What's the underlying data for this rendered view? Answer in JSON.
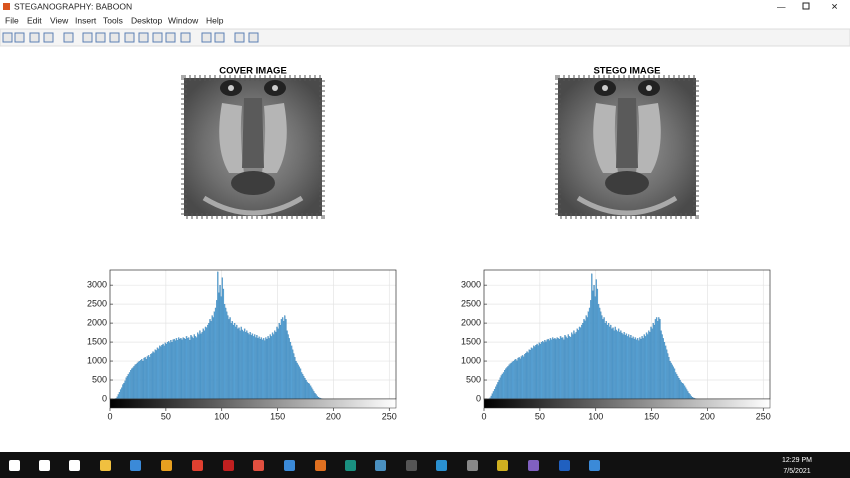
{
  "window": {
    "title": "STEGANOGRAPHY: BABOON",
    "menu": [
      "File",
      "Edit",
      "View",
      "Insert",
      "Tools",
      "Desktop",
      "Window",
      "Help"
    ]
  },
  "images": [
    {
      "title": "COVER IMAGE"
    },
    {
      "title": "STEGO IMAGE"
    }
  ],
  "chart_data": [
    {
      "type": "histogram",
      "color": "#5aa5d8",
      "grid": true,
      "xlim": [
        0,
        256
      ],
      "ylim": [
        0,
        3400
      ],
      "xticks": [
        0,
        50,
        100,
        150,
        200,
        250
      ],
      "yticks": [
        0,
        500,
        1000,
        1500,
        2000,
        2500,
        3000
      ],
      "bins": [
        0,
        1,
        2,
        3,
        4,
        5,
        6,
        7,
        8,
        9,
        10,
        11,
        12,
        13,
        14,
        15,
        16,
        17,
        18,
        19,
        20,
        21,
        22,
        23,
        24,
        25,
        26,
        27,
        28,
        29,
        30,
        31,
        32,
        33,
        34,
        35,
        36,
        37,
        38,
        39,
        40,
        41,
        42,
        43,
        44,
        45,
        46,
        47,
        48,
        49,
        50,
        51,
        52,
        53,
        54,
        55,
        56,
        57,
        58,
        59,
        60,
        61,
        62,
        63,
        64,
        65,
        66,
        67,
        68,
        69,
        70,
        71,
        72,
        73,
        74,
        75,
        76,
        77,
        78,
        79,
        80,
        81,
        82,
        83,
        84,
        85,
        86,
        87,
        88,
        89,
        90,
        91,
        92,
        93,
        94,
        95,
        96,
        97,
        98,
        99,
        100,
        101,
        102,
        103,
        104,
        105,
        106,
        107,
        108,
        109,
        110,
        111,
        112,
        113,
        114,
        115,
        116,
        117,
        118,
        119,
        120,
        121,
        122,
        123,
        124,
        125,
        126,
        127,
        128,
        129,
        130,
        131,
        132,
        133,
        134,
        135,
        136,
        137,
        138,
        139,
        140,
        141,
        142,
        143,
        144,
        145,
        146,
        147,
        148,
        149,
        150,
        151,
        152,
        153,
        154,
        155,
        156,
        157,
        158,
        159,
        160,
        161,
        162,
        163,
        164,
        165,
        166,
        167,
        168,
        169,
        170,
        171,
        172,
        173,
        174,
        175,
        176,
        177,
        178,
        179,
        180,
        181,
        182,
        183,
        184,
        185,
        186,
        187,
        188,
        189,
        190,
        191,
        192,
        193,
        194,
        195,
        196,
        197,
        198,
        199,
        200,
        201,
        202,
        203,
        204,
        205,
        206,
        207,
        208,
        209,
        210,
        211,
        212,
        213,
        214,
        215,
        216,
        217,
        218,
        219,
        220,
        221,
        222,
        223,
        224,
        225,
        226,
        227,
        228,
        229,
        230,
        231,
        232,
        233,
        234,
        235,
        236,
        237,
        238,
        239,
        240,
        241,
        242,
        243,
        244,
        245,
        246,
        247,
        248,
        249,
        250,
        251,
        252,
        253,
        254,
        255,
        256
      ],
      "values": [
        0,
        0,
        0,
        0,
        5,
        20,
        60,
        120,
        180,
        250,
        300,
        380,
        420,
        480,
        560,
        600,
        650,
        700,
        760,
        800,
        820,
        860,
        900,
        920,
        950,
        980,
        1000,
        1020,
        1050,
        1000,
        1080,
        1100,
        1050,
        1120,
        1150,
        1100,
        1180,
        1200,
        1250,
        1220,
        1300,
        1280,
        1350,
        1320,
        1400,
        1380,
        1420,
        1450,
        1400,
        1480,
        1450,
        1500,
        1520,
        1480,
        1550,
        1500,
        1560,
        1580,
        1540,
        1600,
        1550,
        1620,
        1580,
        1600,
        1560,
        1620,
        1600,
        1580,
        1650,
        1600,
        1620,
        1550,
        1680,
        1640,
        1600,
        1700,
        1650,
        1620,
        1750,
        1700,
        1800,
        1720,
        1760,
        1850,
        1800,
        1900,
        1880,
        1950,
        2000,
        2100,
        2050,
        2200,
        2150,
        2300,
        2400,
        2600,
        3350,
        2800,
        3000,
        2700,
        3200,
        2900,
        2500,
        2400,
        2300,
        2200,
        2100,
        2150,
        2000,
        2050,
        1950,
        2000,
        1900,
        1950,
        1850,
        1880,
        1800,
        1900,
        1820,
        1780,
        1850,
        1760,
        1800,
        1740,
        1700,
        1760,
        1680,
        1720,
        1650,
        1700,
        1620,
        1680,
        1600,
        1640,
        1580,
        1620,
        1560,
        1600,
        1540,
        1620,
        1580,
        1650,
        1600,
        1700,
        1650,
        1750,
        1700,
        1800,
        1760,
        1900,
        1850,
        2000,
        1950,
        2100,
        2150,
        2050,
        2200,
        2100,
        1800,
        1700,
        1600,
        1500,
        1400,
        1300,
        1200,
        1100,
        1000,
        950,
        900,
        850,
        800,
        700,
        650,
        600,
        550,
        500,
        450,
        420,
        400,
        350,
        300,
        250,
        200,
        150,
        120,
        80,
        50,
        30,
        20,
        10,
        5,
        0,
        0,
        0,
        0,
        0,
        0,
        0,
        0,
        0,
        0,
        0,
        0,
        0,
        0,
        0,
        0,
        0,
        0,
        0,
        0,
        0,
        0,
        0,
        0,
        0,
        0,
        0,
        0,
        0,
        0,
        0,
        0,
        0,
        0,
        0,
        0,
        0,
        0,
        0,
        0,
        0,
        0,
        0,
        0,
        0,
        0,
        0,
        0,
        0,
        0,
        0,
        0,
        0,
        0,
        0,
        0,
        0,
        0,
        0,
        0,
        0,
        0,
        0,
        0,
        0
      ]
    },
    {
      "type": "histogram",
      "color": "#5aa5d8",
      "grid": true,
      "xlim": [
        0,
        256
      ],
      "ylim": [
        0,
        3400
      ],
      "xticks": [
        0,
        50,
        100,
        150,
        200,
        250
      ],
      "yticks": [
        0,
        500,
        1000,
        1500,
        2000,
        2500,
        3000
      ],
      "bins": [
        0,
        1,
        2,
        3,
        4,
        5,
        6,
        7,
        8,
        9,
        10,
        11,
        12,
        13,
        14,
        15,
        16,
        17,
        18,
        19,
        20,
        21,
        22,
        23,
        24,
        25,
        26,
        27,
        28,
        29,
        30,
        31,
        32,
        33,
        34,
        35,
        36,
        37,
        38,
        39,
        40,
        41,
        42,
        43,
        44,
        45,
        46,
        47,
        48,
        49,
        50,
        51,
        52,
        53,
        54,
        55,
        56,
        57,
        58,
        59,
        60,
        61,
        62,
        63,
        64,
        65,
        66,
        67,
        68,
        69,
        70,
        71,
        72,
        73,
        74,
        75,
        76,
        77,
        78,
        79,
        80,
        81,
        82,
        83,
        84,
        85,
        86,
        87,
        88,
        89,
        90,
        91,
        92,
        93,
        94,
        95,
        96,
        97,
        98,
        99,
        100,
        101,
        102,
        103,
        104,
        105,
        106,
        107,
        108,
        109,
        110,
        111,
        112,
        113,
        114,
        115,
        116,
        117,
        118,
        119,
        120,
        121,
        122,
        123,
        124,
        125,
        126,
        127,
        128,
        129,
        130,
        131,
        132,
        133,
        134,
        135,
        136,
        137,
        138,
        139,
        140,
        141,
        142,
        143,
        144,
        145,
        146,
        147,
        148,
        149,
        150,
        151,
        152,
        153,
        154,
        155,
        156,
        157,
        158,
        159,
        160,
        161,
        162,
        163,
        164,
        165,
        166,
        167,
        168,
        169,
        170,
        171,
        172,
        173,
        174,
        175,
        176,
        177,
        178,
        179,
        180,
        181,
        182,
        183,
        184,
        185,
        186,
        187,
        188,
        189,
        190,
        191,
        192,
        193,
        194,
        195,
        196,
        197,
        198,
        199,
        200,
        201,
        202,
        203,
        204,
        205,
        206,
        207,
        208,
        209,
        210,
        211,
        212,
        213,
        214,
        215,
        216,
        217,
        218,
        219,
        220,
        221,
        222,
        223,
        224,
        225,
        226,
        227,
        228,
        229,
        230,
        231,
        232,
        233,
        234,
        235,
        236,
        237,
        238,
        239,
        240,
        241,
        242,
        243,
        244,
        245,
        246,
        247,
        248,
        249,
        250,
        251,
        252,
        253,
        254,
        255,
        256
      ],
      "values": [
        0,
        0,
        0,
        0,
        10,
        30,
        80,
        140,
        200,
        260,
        320,
        380,
        440,
        500,
        560,
        620,
        660,
        700,
        760,
        800,
        830,
        860,
        900,
        930,
        950,
        980,
        1000,
        1030,
        1050,
        1010,
        1080,
        1100,
        1060,
        1120,
        1150,
        1110,
        1180,
        1210,
        1250,
        1220,
        1300,
        1290,
        1350,
        1330,
        1400,
        1380,
        1420,
        1450,
        1410,
        1480,
        1450,
        1500,
        1520,
        1490,
        1550,
        1510,
        1560,
        1580,
        1540,
        1600,
        1560,
        1620,
        1580,
        1600,
        1570,
        1620,
        1600,
        1580,
        1650,
        1610,
        1620,
        1560,
        1680,
        1640,
        1600,
        1700,
        1650,
        1630,
        1750,
        1700,
        1800,
        1720,
        1760,
        1850,
        1810,
        1900,
        1880,
        1950,
        2000,
        2100,
        2060,
        2200,
        2150,
        2300,
        2400,
        2600,
        3300,
        2850,
        3000,
        2700,
        3150,
        2900,
        2500,
        2400,
        2300,
        2200,
        2100,
        2150,
        2000,
        2050,
        1950,
        2000,
        1900,
        1950,
        1850,
        1880,
        1800,
        1900,
        1820,
        1780,
        1850,
        1760,
        1800,
        1740,
        1700,
        1760,
        1680,
        1720,
        1650,
        1700,
        1620,
        1680,
        1600,
        1640,
        1580,
        1620,
        1560,
        1600,
        1540,
        1620,
        1580,
        1650,
        1600,
        1700,
        1650,
        1750,
        1700,
        1800,
        1760,
        1900,
        1850,
        2000,
        1950,
        2100,
        2150,
        2050,
        2150,
        2100,
        1800,
        1700,
        1600,
        1500,
        1400,
        1300,
        1200,
        1100,
        1000,
        950,
        900,
        850,
        800,
        700,
        650,
        600,
        550,
        500,
        450,
        420,
        400,
        350,
        300,
        250,
        200,
        150,
        120,
        80,
        50,
        30,
        20,
        10,
        5,
        0,
        0,
        0,
        0,
        0,
        0,
        0,
        0,
        0,
        0,
        0,
        0,
        0,
        0,
        0,
        0,
        0,
        0,
        0,
        0,
        0,
        0,
        0,
        0,
        0,
        0,
        0,
        0,
        0,
        0,
        0,
        0,
        0,
        0,
        0,
        0,
        0,
        0,
        0,
        0,
        0,
        0,
        0,
        0,
        0,
        0,
        0,
        0,
        0,
        0,
        0,
        0,
        0,
        0,
        0,
        0,
        0,
        0,
        0,
        0,
        0,
        0,
        0,
        0,
        0
      ]
    }
  ],
  "taskbar": {
    "time": "12:29 PM",
    "date": "7/5/2021"
  }
}
